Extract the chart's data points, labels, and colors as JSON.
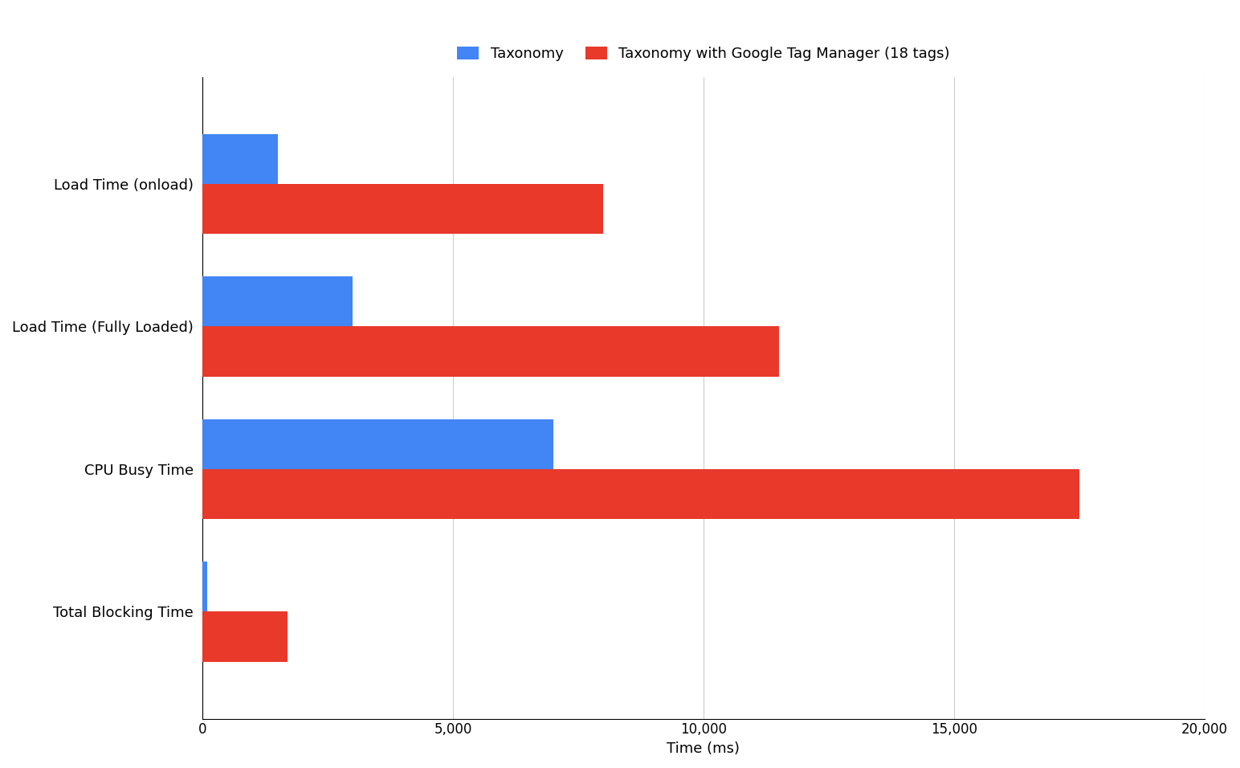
{
  "categories": [
    "Load Time (onload)",
    "Load Time (Fully Loaded)",
    "CPU Busy Time",
    "Total Blocking Time"
  ],
  "taxonomy_values": [
    1500,
    3000,
    7000,
    100
  ],
  "gtm_values": [
    8000,
    11500,
    17500,
    1700
  ],
  "bar_color_taxonomy": "#4285f4",
  "bar_color_gtm": "#e8392a",
  "legend_labels": [
    "Taxonomy",
    "Taxonomy with Google Tag Manager (18 tags)"
  ],
  "xlabel": "Time (ms)",
  "xlim": [
    0,
    20000
  ],
  "xtick_values": [
    0,
    5000,
    10000,
    15000,
    20000
  ],
  "xtick_labels": [
    "0",
    "5,000",
    "10,000",
    "15,000",
    "20,000"
  ],
  "background_color": "#ffffff",
  "grid_color": "#cccccc",
  "bar_height": 0.35,
  "label_fontsize": 13,
  "tick_fontsize": 12
}
